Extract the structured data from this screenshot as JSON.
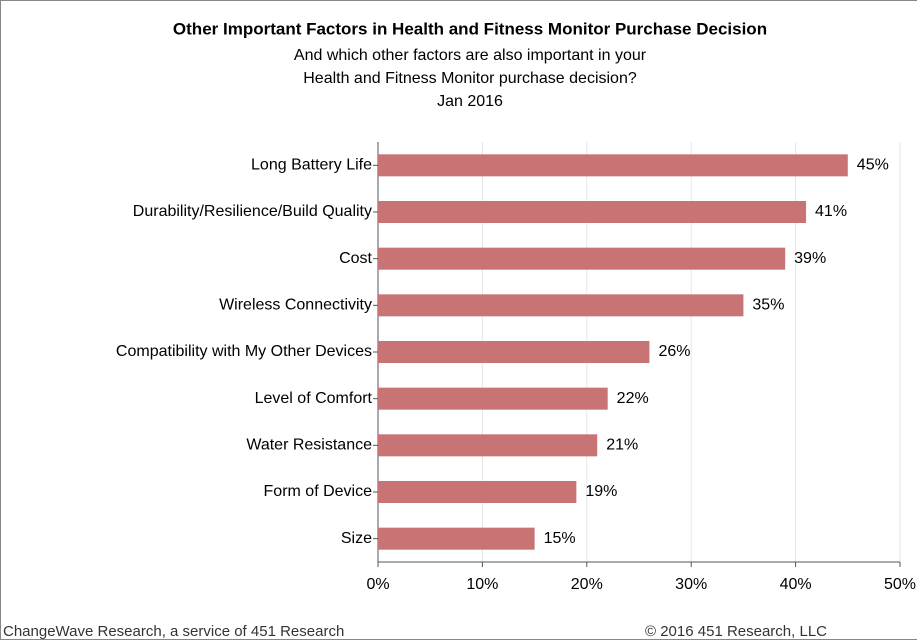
{
  "chart_data": {
    "type": "bar",
    "orientation": "horizontal",
    "title": "Other Important Factors in Health and Fitness Monitor Purchase Decision",
    "subtitle": [
      "And which other factors are also important in your",
      "Health and Fitness Monitor purchase decision?",
      "Jan 2016"
    ],
    "categories": [
      "Long Battery Life",
      "Durability/Resilience/Build Quality",
      "Cost",
      "Wireless Connectivity",
      "Compatibility with My Other Devices",
      "Level of Comfort",
      "Water Resistance",
      "Form of Device",
      "Size"
    ],
    "values": [
      45,
      41,
      39,
      35,
      26,
      22,
      21,
      19,
      15
    ],
    "value_labels": [
      "45%",
      "41%",
      "39%",
      "35%",
      "26%",
      "22%",
      "21%",
      "19%",
      "15%"
    ],
    "color": "#c87474",
    "xlim": [
      0,
      50
    ],
    "xticks": [
      {
        "value": 0,
        "label": "0%"
      },
      {
        "value": 10,
        "label": "10%"
      },
      {
        "value": 20,
        "label": "20%"
      },
      {
        "value": 30,
        "label": "30%"
      },
      {
        "value": 40,
        "label": "40%"
      },
      {
        "value": 50,
        "label": "50%"
      }
    ],
    "grid": true,
    "footer_left": "ChangeWave Research, a service of 451 Research",
    "footer_right": "© 2016 451 Research, LLC"
  }
}
